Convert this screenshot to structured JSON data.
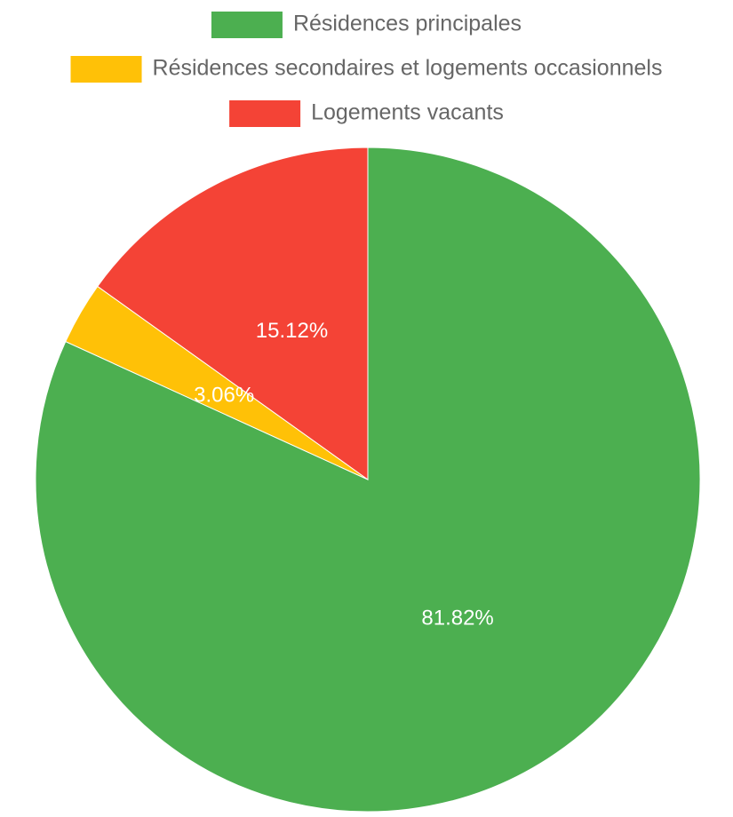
{
  "chart_data": {
    "type": "pie",
    "categories": [
      "Résidences principales",
      "Résidences secondaires et logements occasionnels",
      "Logements vacants"
    ],
    "values": [
      81.82,
      3.06,
      15.12
    ],
    "value_labels": [
      "81.82%",
      "3.06%",
      "15.12%"
    ],
    "colors": [
      "#4caf50",
      "#ffc107",
      "#f44336"
    ],
    "legend": "top"
  }
}
